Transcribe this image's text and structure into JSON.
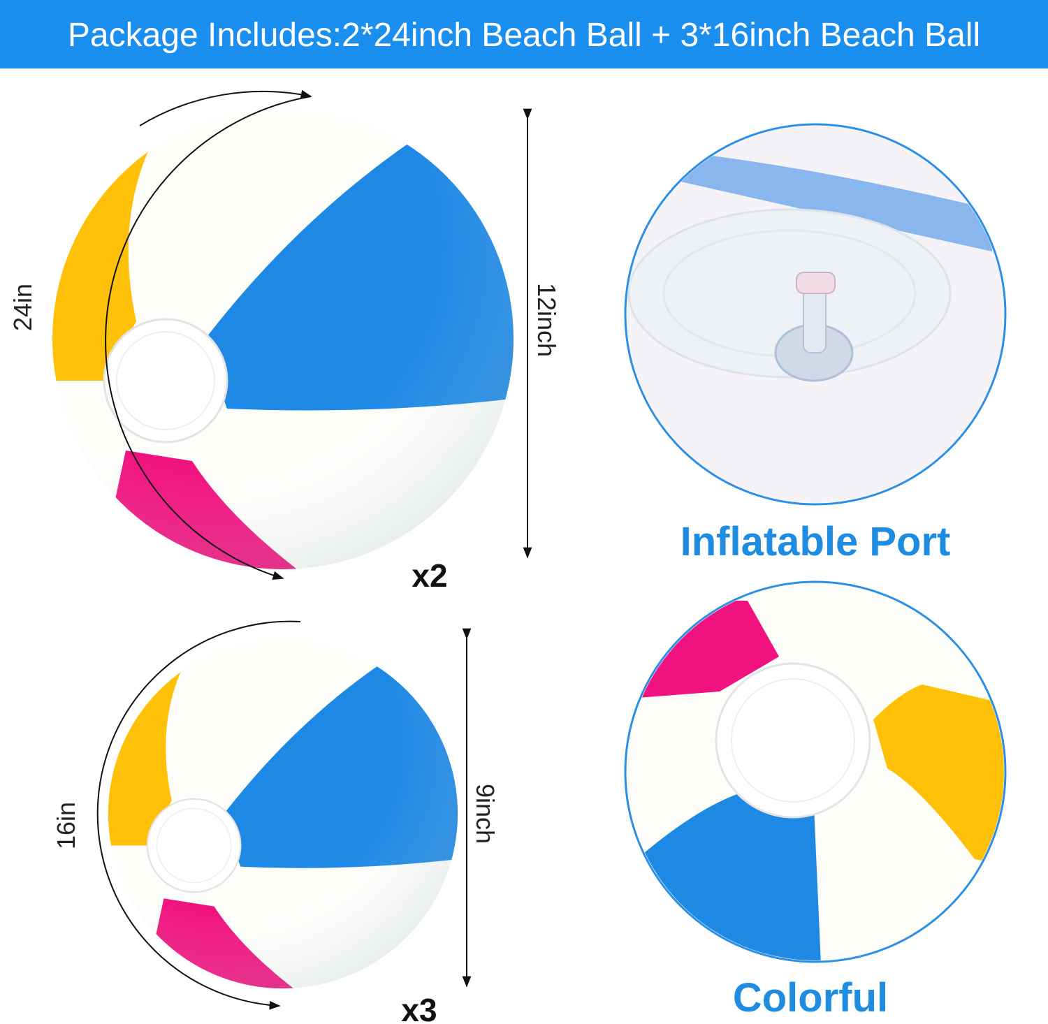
{
  "header": {
    "title": "Package Includes:2*24inch Beach Ball + 3*16inch Beach Ball"
  },
  "large_ball": {
    "circumference": "24in",
    "height": "12inch",
    "quantity": "x2"
  },
  "small_ball": {
    "circumference": "16in",
    "height": "9inch",
    "quantity": "x3"
  },
  "features": [
    {
      "label": "Inflatable Port"
    },
    {
      "label": "Colorful"
    }
  ]
}
